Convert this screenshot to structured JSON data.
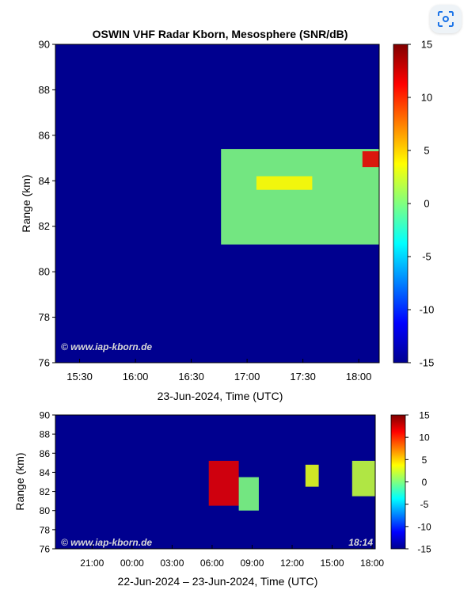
{
  "ui": {
    "lens_icon": "lens-scan-icon"
  },
  "chart_data": [
    {
      "type": "heatmap",
      "title": "OSWIN VHF Radar Kborn, Mesosphere (SNR/dB)",
      "xlabel": "23-Jun-2024, Time (UTC)",
      "ylabel": "Range (km)",
      "xticks": [
        "15:30",
        "16:00",
        "16:30",
        "17:00",
        "17:30",
        "18:00"
      ],
      "xtick_values": [
        "15:30",
        "16:00",
        "16:30",
        "17:00",
        "17:30",
        "18:00"
      ],
      "xlim": [
        "15:17",
        "18:11"
      ],
      "yticks": [
        76,
        78,
        80,
        82,
        84,
        86,
        88,
        90
      ],
      "ylim": [
        76,
        90
      ],
      "colorbar": {
        "label_ticks": [
          15,
          10,
          5,
          0,
          -5,
          -10,
          -15
        ],
        "range": [
          -15,
          15
        ]
      },
      "watermark": "© www.iap-kborn.de",
      "echo_regions": [
        {
          "t_start": "16:46",
          "t_end": "18:11",
          "range_km": [
            81.2,
            85.4
          ],
          "snr_db": 0
        },
        {
          "t_start": "17:05",
          "t_end": "17:35",
          "range_km": [
            83.6,
            84.2
          ],
          "snr_db": 4
        },
        {
          "t_start": "18:02",
          "t_end": "18:11",
          "range_km": [
            84.6,
            85.3
          ],
          "snr_db": 12
        }
      ],
      "background_snr_db": -13
    },
    {
      "type": "heatmap",
      "xlabel": "22-Jun-2024 – 23-Jun-2024, Time (UTC)",
      "ylabel": "Range (km)",
      "xticks": [
        "21:00",
        "00:00",
        "03:00",
        "06:00",
        "09:00",
        "12:00",
        "15:00",
        "18:00"
      ],
      "xtick_values": [
        "2024-06-22 21:00",
        "2024-06-23 00:00",
        "2024-06-23 03:00",
        "2024-06-23 06:00",
        "2024-06-23 09:00",
        "2024-06-23 12:00",
        "2024-06-23 15:00",
        "2024-06-23 18:00"
      ],
      "xlim": [
        "2024-06-22 18:15",
        "2024-06-23 18:14"
      ],
      "yticks": [
        76,
        78,
        80,
        82,
        84,
        86,
        88,
        90
      ],
      "ylim": [
        76,
        90
      ],
      "colorbar": {
        "label_ticks": [
          15,
          10,
          5,
          0,
          -5,
          -10,
          -15
        ],
        "range": [
          -15,
          15
        ]
      },
      "watermark": "© www.iap-kborn.de",
      "timestamp": "18:14",
      "echo_regions": [
        {
          "t_start": "2024-06-23 05:45",
          "t_end": "2024-06-23 08:00",
          "range_km": [
            80.5,
            85.2
          ],
          "snr_db": 12
        },
        {
          "t_start": "2024-06-23 08:00",
          "t_end": "2024-06-23 09:30",
          "range_km": [
            80.0,
            83.5
          ],
          "snr_db": 0
        },
        {
          "t_start": "2024-06-23 13:00",
          "t_end": "2024-06-23 14:00",
          "range_km": [
            82.5,
            84.8
          ],
          "snr_db": 3
        },
        {
          "t_start": "2024-06-23 16:30",
          "t_end": "2024-06-23 18:14",
          "range_km": [
            81.5,
            85.2
          ],
          "snr_db": 2
        }
      ],
      "background_snr_db": -13
    }
  ]
}
